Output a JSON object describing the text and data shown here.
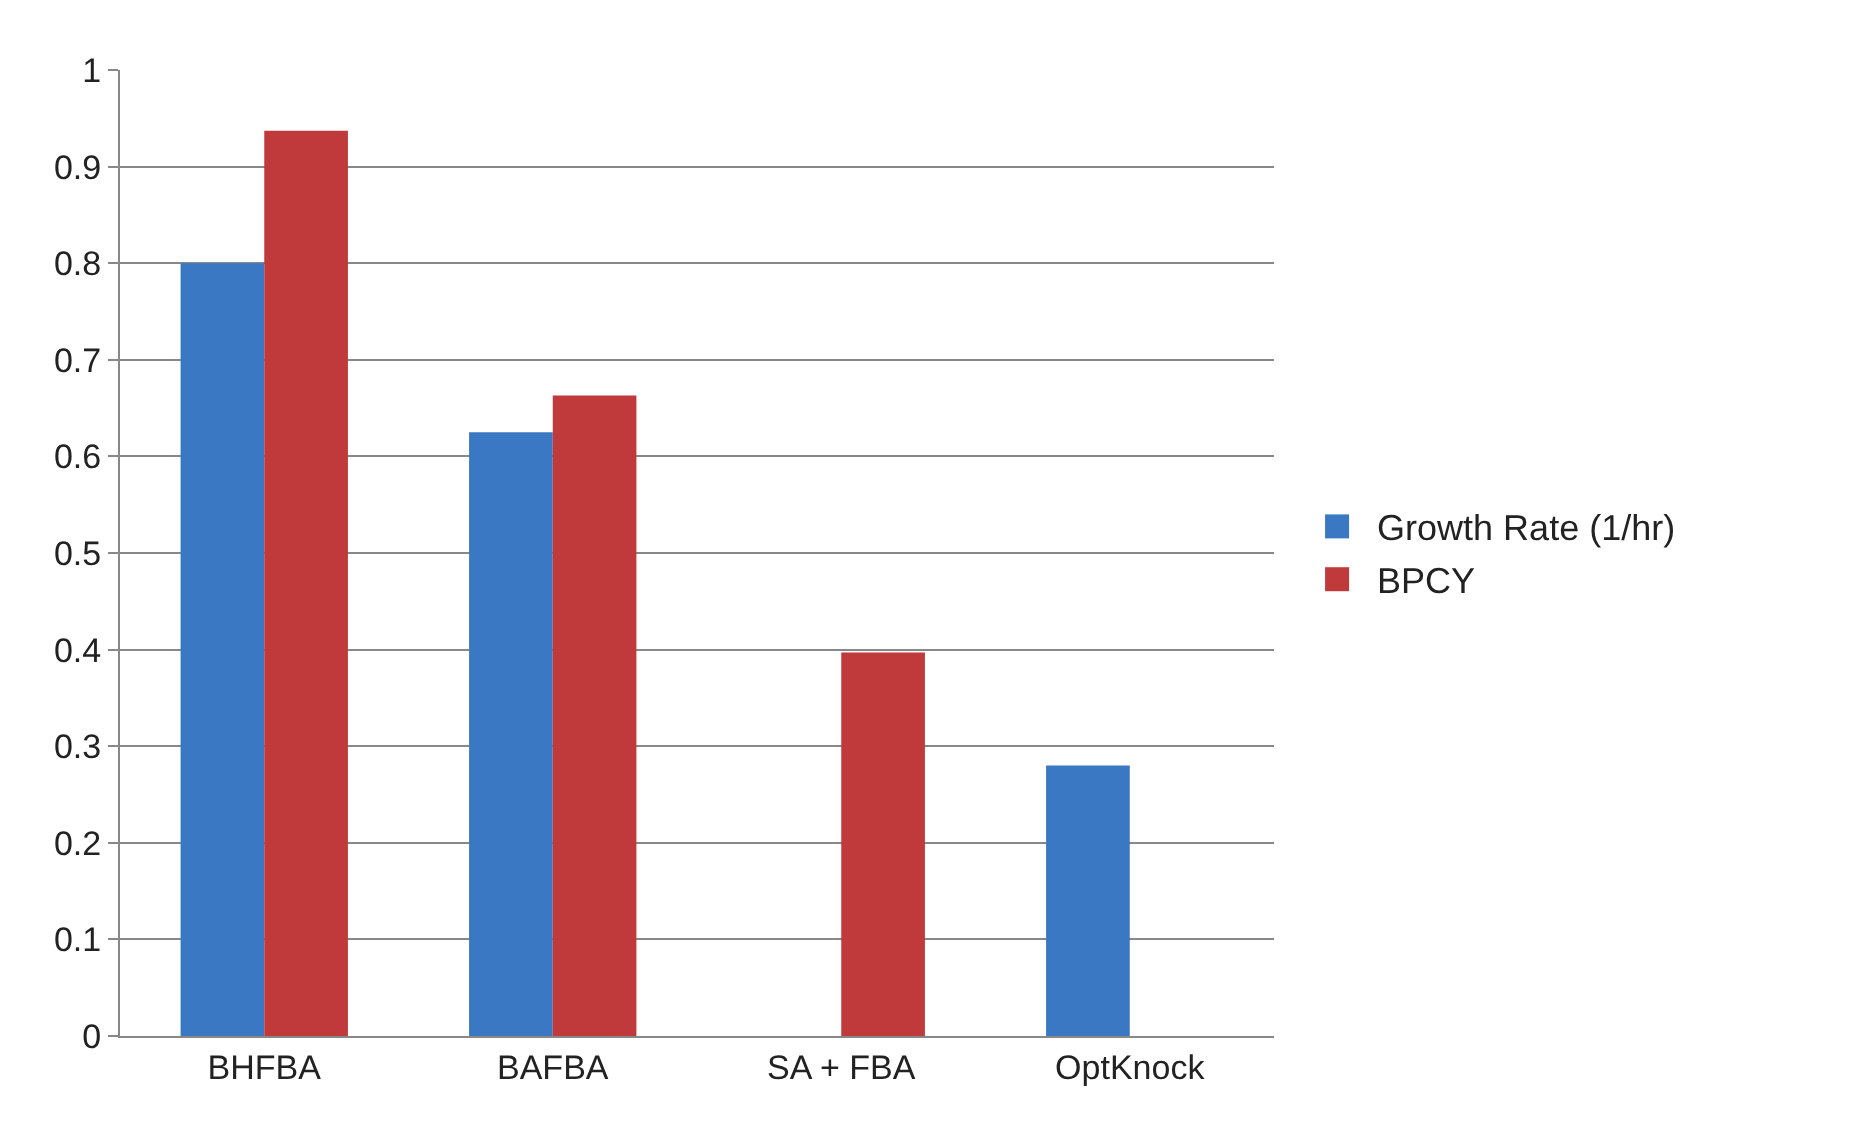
{
  "chart_data": {
    "type": "bar",
    "categories": [
      "BHFBA",
      "BAFBA",
      "SA + FBA",
      "OptKnock"
    ],
    "series": [
      {
        "name": "Growth Rate (1/hr)",
        "color": "#3a78c3",
        "values": [
          0.8,
          0.625,
          null,
          0.28
        ]
      },
      {
        "name": "BPCY",
        "color": "#c0393b",
        "values": [
          0.937,
          0.663,
          0.397,
          null
        ]
      }
    ],
    "ylim": [
      0,
      1
    ],
    "yticks": [
      0,
      {
        "value": 0.1,
        "label": "0.1"
      },
      {
        "value": 0.2,
        "label": "0.2"
      },
      {
        "value": 0.3,
        "label": "0.3"
      },
      {
        "value": 0.4,
        "label": "0.4"
      },
      {
        "value": 0.5,
        "label": "0.5"
      },
      {
        "value": 0.6,
        "label": "0.6"
      },
      {
        "value": 0.7,
        "label": "0.7"
      },
      {
        "value": 0.8,
        "label": "0.8"
      },
      {
        "value": 0.9,
        "label": "0.9"
      },
      1
    ],
    "grid": "y",
    "legend": "right"
  }
}
